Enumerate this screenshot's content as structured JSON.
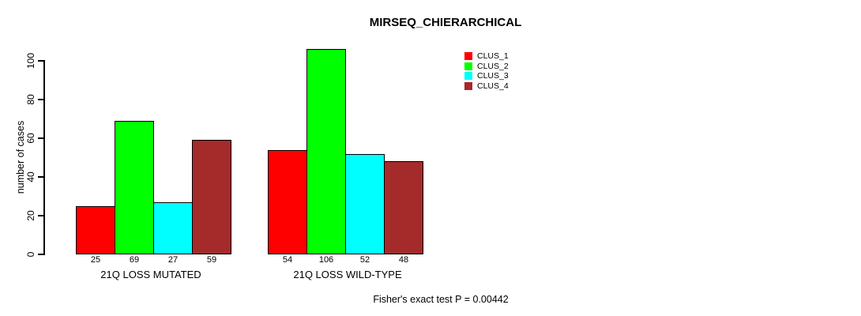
{
  "chart_data": {
    "type": "bar",
    "title": "MIRSEQ_CHIERARCHICAL",
    "ylabel": "number of cases",
    "xlabel": "",
    "ylim": [
      0,
      106
    ],
    "yticks": [
      0,
      20,
      40,
      60,
      80,
      100
    ],
    "grid": false,
    "legend_position": "top-right",
    "bar_border_color": "#000000",
    "categories": [
      "21Q LOSS MUTATED",
      "21Q LOSS WILD-TYPE"
    ],
    "series": [
      {
        "name": "CLUS_1",
        "color": "#FF0000",
        "values": [
          25,
          54
        ]
      },
      {
        "name": "CLUS_2",
        "color": "#00FF00",
        "values": [
          69,
          106
        ]
      },
      {
        "name": "CLUS_3",
        "color": "#00FFFF",
        "values": [
          27,
          52
        ]
      },
      {
        "name": "CLUS_4",
        "color": "#A52A2A",
        "values": [
          59,
          48
        ]
      }
    ],
    "footnote": "Fisher's exact test P = 0.00442"
  }
}
